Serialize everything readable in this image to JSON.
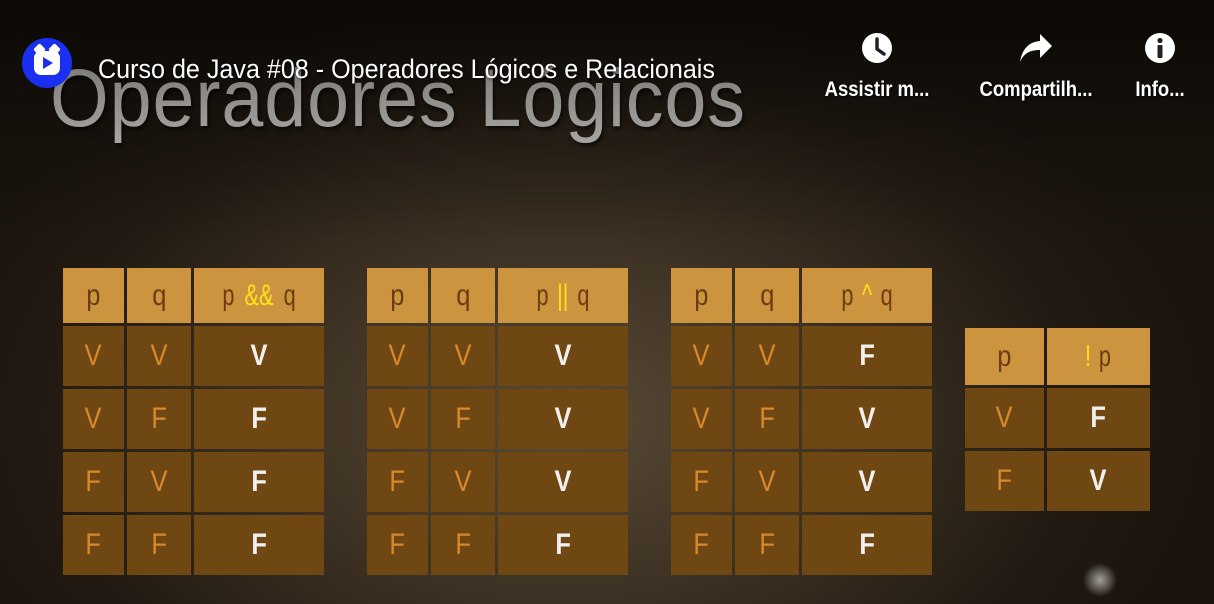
{
  "slide": {
    "heading": "Operadores Lógicos"
  },
  "player": {
    "title": "Curso de Java #08 - Operadores Lógicos e Relacionais",
    "actions": {
      "watch_later": "Assistir m...",
      "share": "Compartilh...",
      "info": "Info..."
    },
    "icons": {
      "logo": "channel-logo-icon",
      "watch_later": "clock-icon",
      "share": "share-arrow-icon",
      "info": "info-icon"
    },
    "colors": {
      "logo_bg": "#1a2ff0",
      "header_cell": "#cd9440",
      "body_cell": "#6e4713",
      "operator": "#ffe31a"
    }
  },
  "tables": {
    "and": {
      "headers": [
        "p",
        "q",
        {
          "pre": "p ",
          "op": "&&",
          "post": " q"
        }
      ],
      "rows": [
        [
          "V",
          "V",
          "V"
        ],
        [
          "V",
          "F",
          "F"
        ],
        [
          "F",
          "V",
          "F"
        ],
        [
          "F",
          "F",
          "F"
        ]
      ]
    },
    "or": {
      "headers": [
        "p",
        "q",
        {
          "pre": "p ",
          "op": "||",
          "post": " q"
        }
      ],
      "rows": [
        [
          "V",
          "V",
          "V"
        ],
        [
          "V",
          "F",
          "V"
        ],
        [
          "F",
          "V",
          "V"
        ],
        [
          "F",
          "F",
          "F"
        ]
      ]
    },
    "xor": {
      "headers": [
        "p",
        "q",
        {
          "pre": "p ",
          "op": "^",
          "post": " q"
        }
      ],
      "rows": [
        [
          "V",
          "V",
          "F"
        ],
        [
          "V",
          "F",
          "V"
        ],
        [
          "F",
          "V",
          "V"
        ],
        [
          "F",
          "F",
          "F"
        ]
      ]
    },
    "not": {
      "headers": [
        "p",
        {
          "pre": "",
          "op": "!",
          "post": " p"
        }
      ],
      "rows": [
        [
          "V",
          "F"
        ],
        [
          "F",
          "V"
        ]
      ]
    }
  }
}
